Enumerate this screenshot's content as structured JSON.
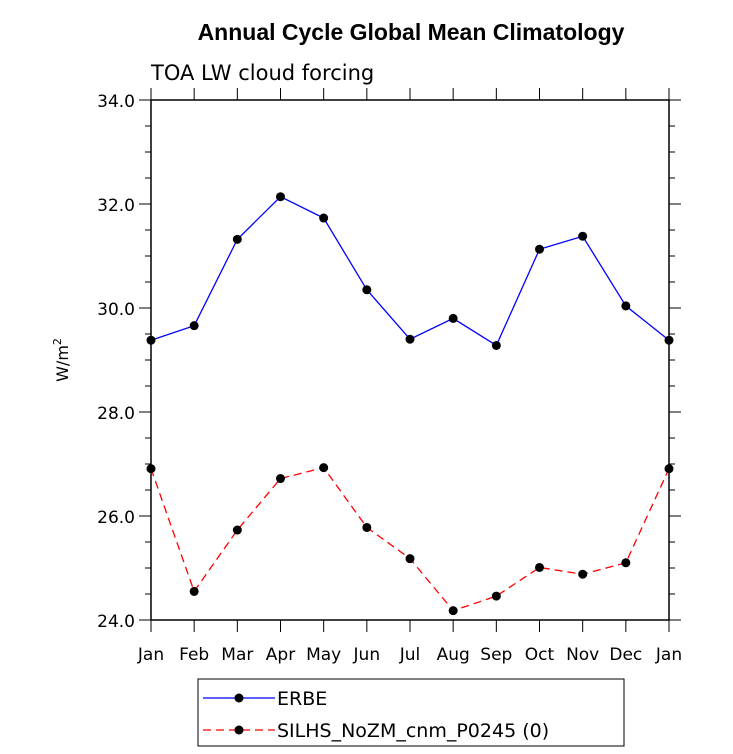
{
  "chart_data": {
    "type": "line",
    "title": "Annual Cycle Global Mean Climatology",
    "subtitle": "TOA LW cloud forcing",
    "xlabel": "",
    "ylabel_main": "W/m",
    "ylabel_sup": "2",
    "categories": [
      "Jan",
      "Feb",
      "Mar",
      "Apr",
      "May",
      "Jun",
      "Jul",
      "Aug",
      "Sep",
      "Oct",
      "Nov",
      "Dec",
      "Jan"
    ],
    "ylim": [
      24.0,
      34.0
    ],
    "yticks": [
      "24.0",
      "26.0",
      "28.0",
      "30.0",
      "32.0",
      "34.0"
    ],
    "series": [
      {
        "name": "ERBE",
        "color": "#0000ff",
        "dash": "solid",
        "values": [
          29.38,
          29.66,
          31.32,
          32.14,
          31.73,
          30.35,
          29.4,
          29.8,
          29.28,
          31.13,
          31.38,
          30.04,
          29.38
        ]
      },
      {
        "name": "SILHS_NoZM_cnm_P0245 (0)",
        "color": "#ff0000",
        "dash": "dashed",
        "values": [
          26.91,
          24.55,
          25.73,
          26.72,
          26.93,
          25.78,
          25.18,
          24.18,
          24.46,
          25.01,
          24.88,
          25.1,
          26.91
        ]
      }
    ],
    "legend_position": "bottom-center"
  }
}
